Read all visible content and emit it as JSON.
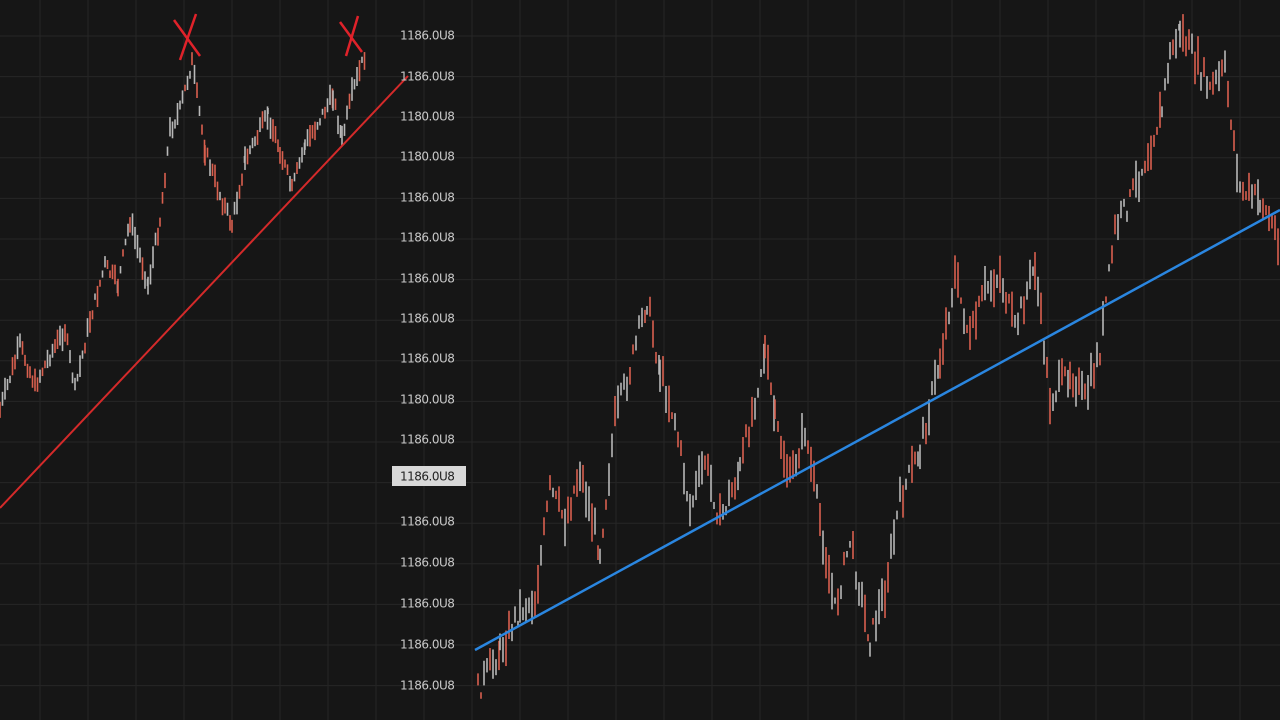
{
  "price_axis": {
    "labels": [
      "1186.0U8",
      "1186.0U8",
      "1180.0U8",
      "1180.0U8",
      "1186.0U8",
      "1186.0U8",
      "1186.0U8",
      "1186.0U8",
      "1186.0U8",
      "1180.0U8",
      "1186.0U8",
      "1186.0U8",
      "1186.0U8",
      "1186.0U8",
      "1186.0U8",
      "1186.0U8"
    ],
    "current_label": "1186.0U8"
  }
}
